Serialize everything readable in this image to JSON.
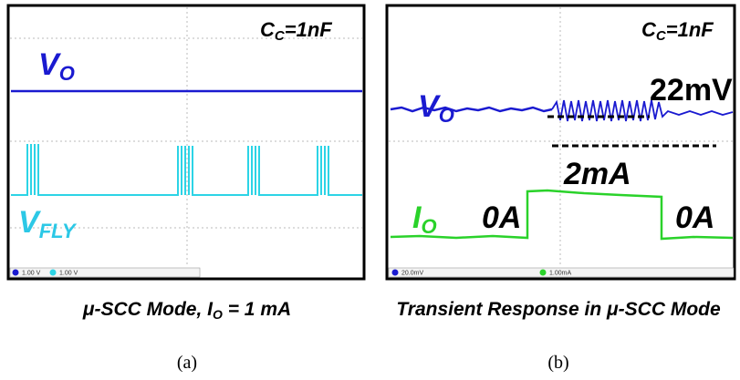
{
  "panel_a": {
    "label": "(a)",
    "caption": {
      "before": "μ-SCC Mode, I",
      "sub": "O",
      "after": " = 1 mA"
    },
    "capacitor": {
      "main": "C",
      "sub": "C",
      "rest": "=1nF"
    },
    "traces": [
      {
        "main": "V",
        "sub": "O"
      },
      {
        "main": "V",
        "sub": "FLY"
      }
    ],
    "scales": [
      "1.00 V",
      "1.00 V"
    ]
  },
  "panel_b": {
    "label": "(b)",
    "caption": "Transient Response in μ-SCC Mode",
    "capacitor": {
      "main": "C",
      "sub": "C",
      "rest": "=1nF"
    },
    "traces": [
      {
        "main": "V",
        "sub": "O"
      },
      {
        "main": "I",
        "sub": "O"
      }
    ],
    "annotations": {
      "ripple": "22mV",
      "load": "2mA",
      "before": "0A",
      "after": "0A"
    },
    "scales": [
      "20.0mV",
      "1.00mA"
    ]
  }
}
